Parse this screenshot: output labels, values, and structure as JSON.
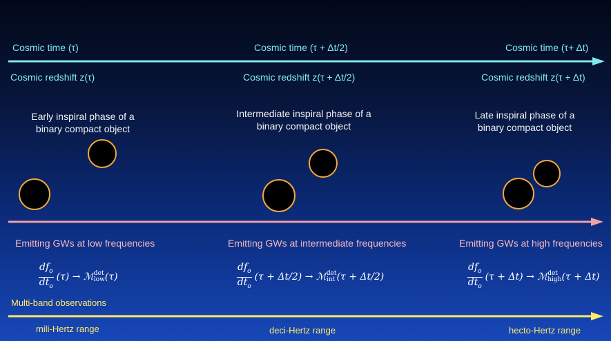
{
  "time_row": {
    "t1": "Cosmic time (τ)",
    "t2": "Cosmic time (τ + Δt/2)",
    "t3": "Cosmic time (τ+ Δt)"
  },
  "redshift_row": {
    "z1": "Cosmic redshift z(τ)",
    "z2": "Cosmic redshift z(τ + Δt/2)",
    "z3": "Cosmic redshift z(τ + Δt)"
  },
  "phases": {
    "early": "Early inspiral phase of a binary compact object",
    "intermediate": "Intermediate inspiral phase of a binary compact object",
    "late": "Late inspiral phase of a binary compact object"
  },
  "emitting": {
    "low": "Emitting GWs at low frequencies",
    "intermediate": "Emitting GWs at intermediate frequencies",
    "high": "Emitting GWs at high frequencies"
  },
  "formulas": {
    "num": "df",
    "num_sub": "o",
    "den": "dt",
    "den_sub": "o",
    "low_arg": "(τ) → ℳ",
    "low_sub": "low",
    "low_tail": "(τ)",
    "int_arg": "(τ + Δt/2) → ℳ",
    "int_sub": "int",
    "int_tail": "(τ + Δt/2)",
    "high_arg": "(τ + Δt) → ℳ",
    "high_sub": "high",
    "high_tail": "(τ + Δt)",
    "sup": "det"
  },
  "multiband": {
    "label": "Multi-band observations",
    "mili": "mili-Hertz range",
    "deci": "deci-Hertz range",
    "hecto": "hecto-Hertz range"
  },
  "colors": {
    "cyan": "#7fe8ea",
    "pink": "#f0a0a8",
    "yellow": "#ffea6a",
    "ball_border": "#f4a836"
  }
}
